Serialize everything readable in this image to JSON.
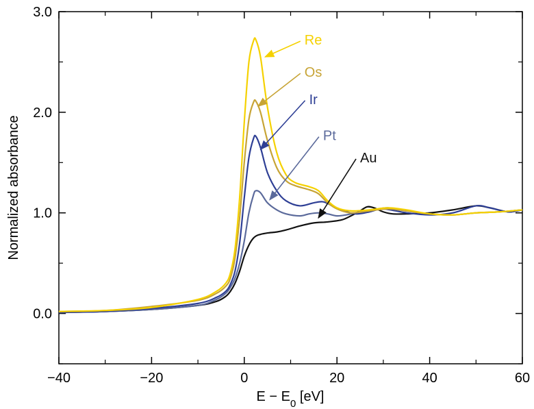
{
  "chart_data": {
    "type": "line",
    "title": "",
    "xlabel": "E − E",
    "xlabel_sub": "0",
    "xlabel_unit": " [eV]",
    "ylabel": "Normalized absorbance",
    "xlim": [
      -40,
      60
    ],
    "ylim": [
      -0.5,
      3.0
    ],
    "xticks": [
      -40,
      -20,
      0,
      20,
      40,
      60
    ],
    "xtick_labels": [
      "−40",
      "−20",
      "0",
      "20",
      "40",
      "60"
    ],
    "yticks": [
      0.0,
      1.0,
      2.0,
      3.0
    ],
    "ytick_labels": [
      "0.0",
      "1.0",
      "2.0",
      "3.0"
    ],
    "grid": false,
    "series": [
      {
        "name": "Au",
        "color": "#111111",
        "points": [
          [
            -40,
            0.01
          ],
          [
            -30,
            0.02
          ],
          [
            -20,
            0.04
          ],
          [
            -10,
            0.08
          ],
          [
            -6,
            0.12
          ],
          [
            -4,
            0.17
          ],
          [
            -3,
            0.22
          ],
          [
            -2,
            0.3
          ],
          [
            -1,
            0.42
          ],
          [
            0,
            0.57
          ],
          [
            1,
            0.68
          ],
          [
            2,
            0.75
          ],
          [
            3,
            0.78
          ],
          [
            5,
            0.8
          ],
          [
            7,
            0.81
          ],
          [
            9,
            0.83
          ],
          [
            12,
            0.87
          ],
          [
            15,
            0.9
          ],
          [
            18,
            0.91
          ],
          [
            21,
            0.93
          ],
          [
            23,
            0.97
          ],
          [
            25,
            1.02
          ],
          [
            26.5,
            1.06
          ],
          [
            28,
            1.05
          ],
          [
            30,
            1.01
          ],
          [
            32,
            0.99
          ],
          [
            35,
            0.99
          ],
          [
            40,
            1.0
          ],
          [
            45,
            1.03
          ],
          [
            50,
            1.07
          ],
          [
            53,
            1.05
          ],
          [
            57,
            1.01
          ],
          [
            60,
            1.03
          ]
        ],
        "label_anchor": [
          25,
          1.55
        ],
        "arrow_to": [
          16,
          0.95
        ]
      },
      {
        "name": "Pt",
        "color": "#5b6a9b",
        "points": [
          [
            -40,
            0.01
          ],
          [
            -30,
            0.02
          ],
          [
            -20,
            0.04
          ],
          [
            -10,
            0.08
          ],
          [
            -6,
            0.14
          ],
          [
            -4,
            0.2
          ],
          [
            -3,
            0.26
          ],
          [
            -2,
            0.35
          ],
          [
            -1,
            0.5
          ],
          [
            0,
            0.72
          ],
          [
            1,
            1.0
          ],
          [
            2,
            1.18
          ],
          [
            2.5,
            1.22
          ],
          [
            3.5,
            1.2
          ],
          [
            5,
            1.1
          ],
          [
            7,
            1.03
          ],
          [
            9,
            0.99
          ],
          [
            12,
            0.97
          ],
          [
            14,
            0.99
          ],
          [
            16,
            1.0
          ],
          [
            18,
            0.99
          ],
          [
            20,
            0.97
          ],
          [
            22,
            0.98
          ],
          [
            25,
            1.01
          ],
          [
            28,
            1.03
          ],
          [
            31,
            1.05
          ],
          [
            35,
            1.02
          ],
          [
            40,
            0.99
          ],
          [
            45,
            0.98
          ],
          [
            50,
            1.0
          ],
          [
            55,
            1.01
          ],
          [
            60,
            1.03
          ]
        ],
        "label_anchor": [
          17,
          1.77
        ],
        "arrow_to": [
          5.5,
          1.13
        ]
      },
      {
        "name": "Ir",
        "color": "#2e3f95",
        "points": [
          [
            -40,
            0.01
          ],
          [
            -30,
            0.02
          ],
          [
            -20,
            0.05
          ],
          [
            -10,
            0.1
          ],
          [
            -6,
            0.16
          ],
          [
            -4,
            0.22
          ],
          [
            -3,
            0.29
          ],
          [
            -2,
            0.42
          ],
          [
            -1,
            0.7
          ],
          [
            0,
            1.15
          ],
          [
            1,
            1.55
          ],
          [
            2,
            1.74
          ],
          [
            2.5,
            1.76
          ],
          [
            3.5,
            1.65
          ],
          [
            5,
            1.4
          ],
          [
            7,
            1.22
          ],
          [
            9,
            1.12
          ],
          [
            12,
            1.07
          ],
          [
            15,
            1.1
          ],
          [
            17,
            1.11
          ],
          [
            19,
            1.07
          ],
          [
            21,
            1.03
          ],
          [
            24,
            0.99
          ],
          [
            27,
            1.01
          ],
          [
            30,
            1.04
          ],
          [
            35,
            1.0
          ],
          [
            40,
            0.98
          ],
          [
            45,
            1.0
          ],
          [
            50,
            1.07
          ],
          [
            53,
            1.05
          ],
          [
            57,
            1.01
          ],
          [
            60,
            1.03
          ]
        ],
        "label_anchor": [
          14,
          2.13
        ],
        "arrow_to": [
          3.5,
          1.63
        ]
      },
      {
        "name": "Os",
        "color": "#c7a436",
        "points": [
          [
            -40,
            0.02
          ],
          [
            -30,
            0.03
          ],
          [
            -20,
            0.07
          ],
          [
            -10,
            0.13
          ],
          [
            -6,
            0.2
          ],
          [
            -4,
            0.27
          ],
          [
            -3,
            0.35
          ],
          [
            -2,
            0.55
          ],
          [
            -1,
            0.95
          ],
          [
            0,
            1.5
          ],
          [
            1,
            1.93
          ],
          [
            2,
            2.1
          ],
          [
            2.5,
            2.11
          ],
          [
            3.5,
            2.0
          ],
          [
            5,
            1.72
          ],
          [
            7,
            1.45
          ],
          [
            9,
            1.32
          ],
          [
            11,
            1.27
          ],
          [
            14,
            1.23
          ],
          [
            16,
            1.19
          ],
          [
            18,
            1.1
          ],
          [
            20,
            1.04
          ],
          [
            23,
            1.0
          ],
          [
            27,
            1.02
          ],
          [
            31,
            1.04
          ],
          [
            35,
            1.02
          ],
          [
            40,
            0.99
          ],
          [
            45,
            0.98
          ],
          [
            50,
            1.0
          ],
          [
            55,
            1.01
          ],
          [
            60,
            1.03
          ]
        ],
        "label_anchor": [
          13,
          2.4
        ],
        "arrow_to": [
          3,
          2.06
        ]
      },
      {
        "name": "Re",
        "color": "#f5d100",
        "points": [
          [
            -40,
            0.02
          ],
          [
            -30,
            0.03
          ],
          [
            -20,
            0.06
          ],
          [
            -10,
            0.14
          ],
          [
            -6,
            0.22
          ],
          [
            -4,
            0.3
          ],
          [
            -3,
            0.4
          ],
          [
            -2,
            0.64
          ],
          [
            -1,
            1.15
          ],
          [
            0,
            1.9
          ],
          [
            1,
            2.5
          ],
          [
            2,
            2.71
          ],
          [
            2.5,
            2.72
          ],
          [
            3.5,
            2.55
          ],
          [
            5,
            2.05
          ],
          [
            7,
            1.6
          ],
          [
            9,
            1.38
          ],
          [
            11,
            1.3
          ],
          [
            14,
            1.26
          ],
          [
            16,
            1.22
          ],
          [
            18,
            1.12
          ],
          [
            20,
            1.05
          ],
          [
            23,
            1.02
          ],
          [
            27,
            1.03
          ],
          [
            31,
            1.05
          ],
          [
            35,
            1.03
          ],
          [
            40,
            0.99
          ],
          [
            45,
            0.98
          ],
          [
            50,
            1.0
          ],
          [
            55,
            1.01
          ],
          [
            60,
            1.03
          ]
        ],
        "label_anchor": [
          13,
          2.72
        ],
        "arrow_to": [
          4.5,
          2.55
        ]
      }
    ]
  }
}
